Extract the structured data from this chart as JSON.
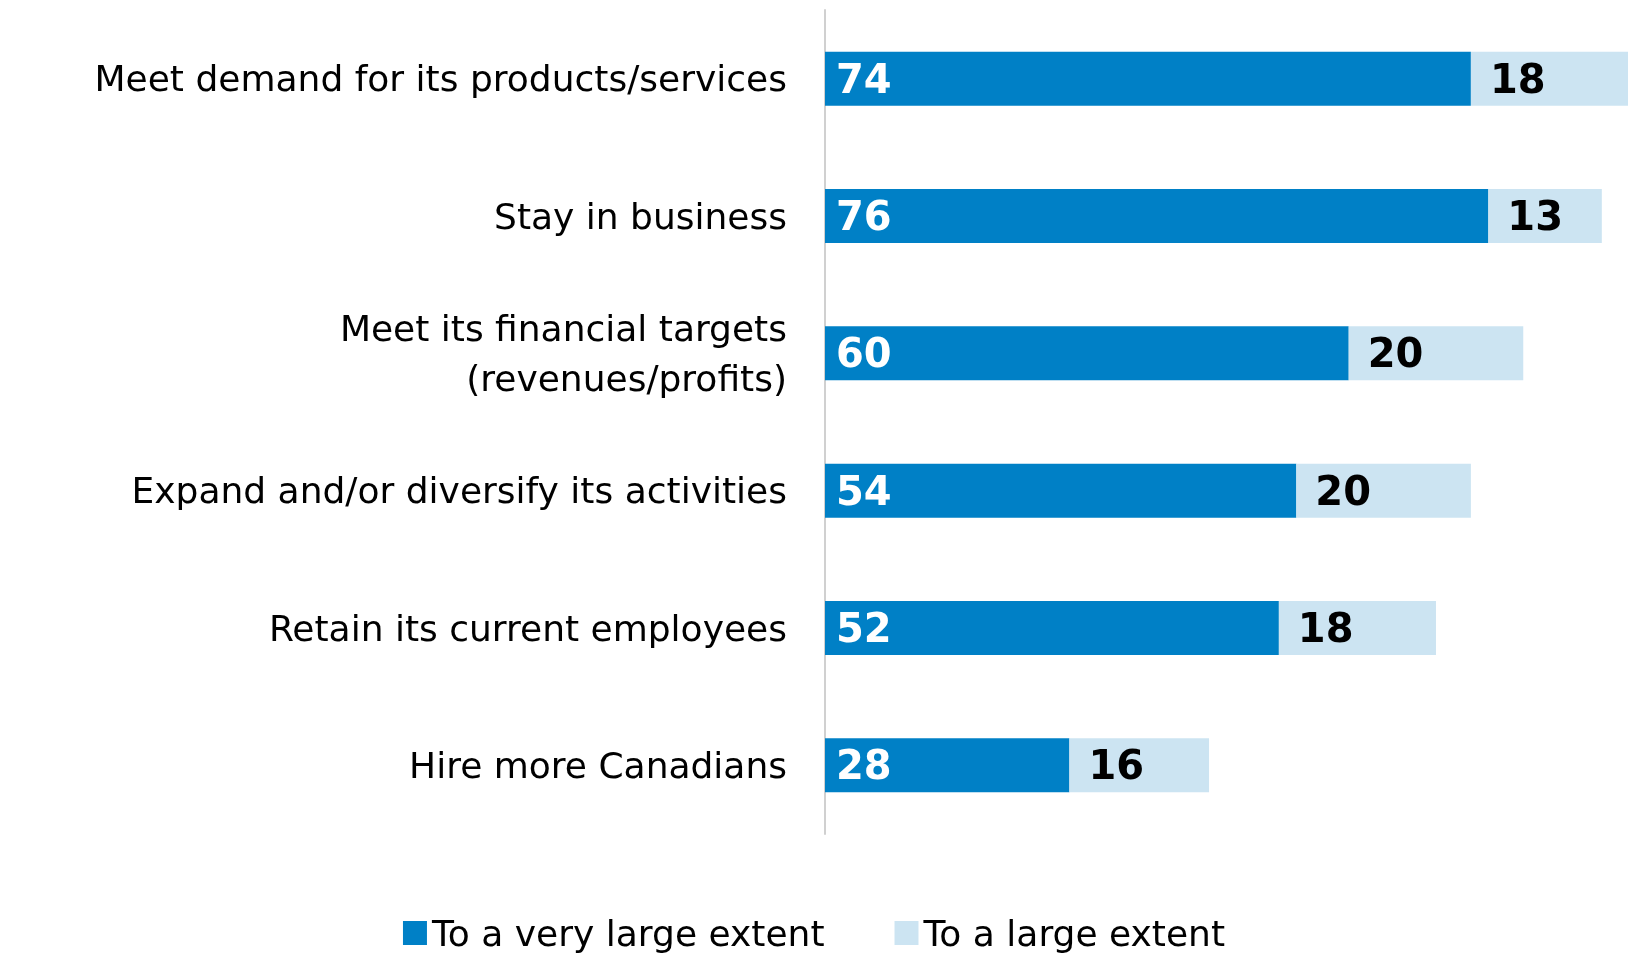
{
  "chart_data": {
    "type": "bar",
    "orientation": "horizontal",
    "stacked": true,
    "data_labels": true,
    "legend": "bottom",
    "grid": false,
    "xlim": [
      0,
      92
    ],
    "categories": [
      "Meet demand for its products/services",
      "Stay in business",
      "Meet its financial targets\n(revenues/profits)",
      "Expand and/or diversify its activities",
      "Retain its current employees",
      "Hire more Canadians"
    ],
    "series": [
      {
        "name": "To a very large extent",
        "color": "#0080c6",
        "values": [
          74,
          76,
          60,
          54,
          52,
          28
        ]
      },
      {
        "name": "To a large extent",
        "color": "#cce4f2",
        "values": [
          18,
          13,
          20,
          20,
          18,
          16
        ]
      }
    ]
  }
}
